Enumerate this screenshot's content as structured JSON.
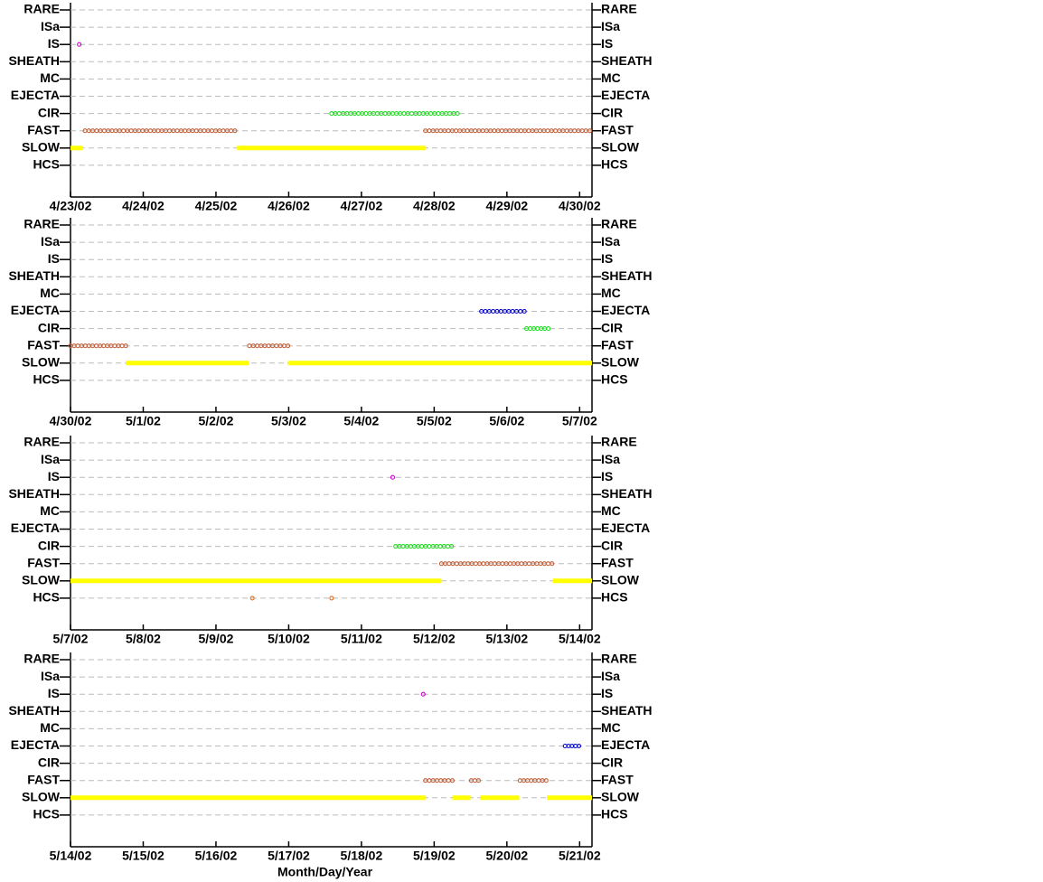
{
  "chart_data": [
    {
      "type": "timeline",
      "yticks": [
        "RARE",
        "ISa",
        "IS",
        "SHEATH",
        "MC",
        "EJECTA",
        "CIR",
        "FAST",
        "SLOW",
        "HCS"
      ],
      "xlim": [
        0,
        7.17
      ],
      "xticks": [
        {
          "value": 0,
          "label": "4/23/02"
        },
        {
          "value": 1,
          "label": "4/24/02"
        },
        {
          "value": 2,
          "label": "4/25/02"
        },
        {
          "value": 3,
          "label": "4/26/02"
        },
        {
          "value": 4,
          "label": "4/27/02"
        },
        {
          "value": 5,
          "label": "4/28/02"
        },
        {
          "value": 6,
          "label": "4/29/02"
        },
        {
          "value": 7,
          "label": "4/30/02"
        }
      ],
      "segments": [
        {
          "y": "IS",
          "x": [
            0.12,
            0.12
          ],
          "color": "#cc00cc"
        },
        {
          "y": "CIR",
          "x": [
            3.59,
            5.32
          ],
          "color": "#22dd22"
        },
        {
          "y": "FAST",
          "x": [
            0.2,
            2.26
          ],
          "color": "#c0603a"
        },
        {
          "y": "FAST",
          "x": [
            4.88,
            7.14
          ],
          "color": "#c0603a"
        },
        {
          "y": "SLOW",
          "x": [
            0,
            0.17
          ],
          "color": "#ffff00"
        },
        {
          "y": "SLOW",
          "x": [
            2.29,
            4.88
          ],
          "color": "#ffff00"
        }
      ]
    },
    {
      "type": "timeline",
      "yticks": [
        "RARE",
        "ISa",
        "IS",
        "SHEATH",
        "MC",
        "EJECTA",
        "CIR",
        "FAST",
        "SLOW",
        "HCS"
      ],
      "xlim": [
        0,
        7.17
      ],
      "xticks": [
        {
          "value": 0,
          "label": "4/30/02"
        },
        {
          "value": 1,
          "label": "5/1/02"
        },
        {
          "value": 2,
          "label": "5/2/02"
        },
        {
          "value": 3,
          "label": "5/3/02"
        },
        {
          "value": 4,
          "label": "5/4/02"
        },
        {
          "value": 5,
          "label": "5/5/02"
        },
        {
          "value": 6,
          "label": "5/6/02"
        },
        {
          "value": 7,
          "label": "5/7/02"
        }
      ],
      "segments": [
        {
          "y": "EJECTA",
          "x": [
            5.65,
            6.24
          ],
          "color": "#0000cc"
        },
        {
          "y": "CIR",
          "x": [
            6.27,
            6.57
          ],
          "color": "#22dd22"
        },
        {
          "y": "FAST",
          "x": [
            0,
            0.76
          ],
          "color": "#c0603a"
        },
        {
          "y": "FAST",
          "x": [
            2.46,
            2.99
          ],
          "color": "#c0603a"
        },
        {
          "y": "SLOW",
          "x": [
            0.76,
            2.45
          ],
          "color": "#ffff00"
        },
        {
          "y": "SLOW",
          "x": [
            2.99,
            7.17
          ],
          "color": "#ffff00"
        }
      ]
    },
    {
      "type": "timeline",
      "yticks": [
        "RARE",
        "ISa",
        "IS",
        "SHEATH",
        "MC",
        "EJECTA",
        "CIR",
        "FAST",
        "SLOW",
        "HCS"
      ],
      "xlim": [
        0,
        7.17
      ],
      "xticks": [
        {
          "value": 0,
          "label": "5/7/02"
        },
        {
          "value": 1,
          "label": "5/8/02"
        },
        {
          "value": 2,
          "label": "5/9/02"
        },
        {
          "value": 3,
          "label": "5/10/02"
        },
        {
          "value": 4,
          "label": "5/11/02"
        },
        {
          "value": 5,
          "label": "5/12/02"
        },
        {
          "value": 6,
          "label": "5/13/02"
        },
        {
          "value": 7,
          "label": "5/14/02"
        }
      ],
      "segments": [
        {
          "y": "IS",
          "x": [
            4.43,
            4.43
          ],
          "color": "#cc00cc"
        },
        {
          "y": "CIR",
          "x": [
            4.47,
            5.24
          ],
          "color": "#22dd22"
        },
        {
          "y": "FAST",
          "x": [
            5.1,
            6.62
          ],
          "color": "#c0603a"
        },
        {
          "y": "SLOW",
          "x": [
            0,
            5.1
          ],
          "color": "#ffff00"
        },
        {
          "y": "SLOW",
          "x": [
            6.63,
            7.17
          ],
          "color": "#ffff00"
        },
        {
          "y": "HCS",
          "x": [
            2.5,
            2.5
          ],
          "color": "#e07020"
        },
        {
          "y": "HCS",
          "x": [
            3.59,
            3.59
          ],
          "color": "#e07020"
        }
      ]
    },
    {
      "type": "timeline",
      "yticks": [
        "RARE",
        "ISa",
        "IS",
        "SHEATH",
        "MC",
        "EJECTA",
        "CIR",
        "FAST",
        "SLOW",
        "HCS"
      ],
      "xlim": [
        0,
        7.17
      ],
      "xticks": [
        {
          "value": 0,
          "label": "5/14/02"
        },
        {
          "value": 1,
          "label": "5/15/02"
        },
        {
          "value": 2,
          "label": "5/16/02"
        },
        {
          "value": 3,
          "label": "5/17/02"
        },
        {
          "value": 4,
          "label": "5/18/02"
        },
        {
          "value": 5,
          "label": "5/19/02"
        },
        {
          "value": 6,
          "label": "5/20/02"
        },
        {
          "value": 7,
          "label": "5/21/02"
        }
      ],
      "xlabel": "Month/Day/Year",
      "segments": [
        {
          "y": "IS",
          "x": [
            4.85,
            4.85
          ],
          "color": "#cc00cc"
        },
        {
          "y": "EJECTA",
          "x": [
            6.8,
            6.99
          ],
          "color": "#0000cc"
        },
        {
          "y": "FAST",
          "x": [
            4.88,
            5.25
          ],
          "color": "#c0603a"
        },
        {
          "y": "FAST",
          "x": [
            5.51,
            5.61
          ],
          "color": "#c0603a"
        },
        {
          "y": "FAST",
          "x": [
            6.18,
            6.54
          ],
          "color": "#c0603a"
        },
        {
          "y": "SLOW",
          "x": [
            0,
            4.88
          ],
          "color": "#ffff00"
        },
        {
          "y": "SLOW",
          "x": [
            5.25,
            5.5
          ],
          "color": "#ffff00"
        },
        {
          "y": "SLOW",
          "x": [
            5.63,
            6.17
          ],
          "color": "#ffff00"
        },
        {
          "y": "SLOW",
          "x": [
            6.55,
            7.17
          ],
          "color": "#ffff00"
        }
      ]
    }
  ]
}
